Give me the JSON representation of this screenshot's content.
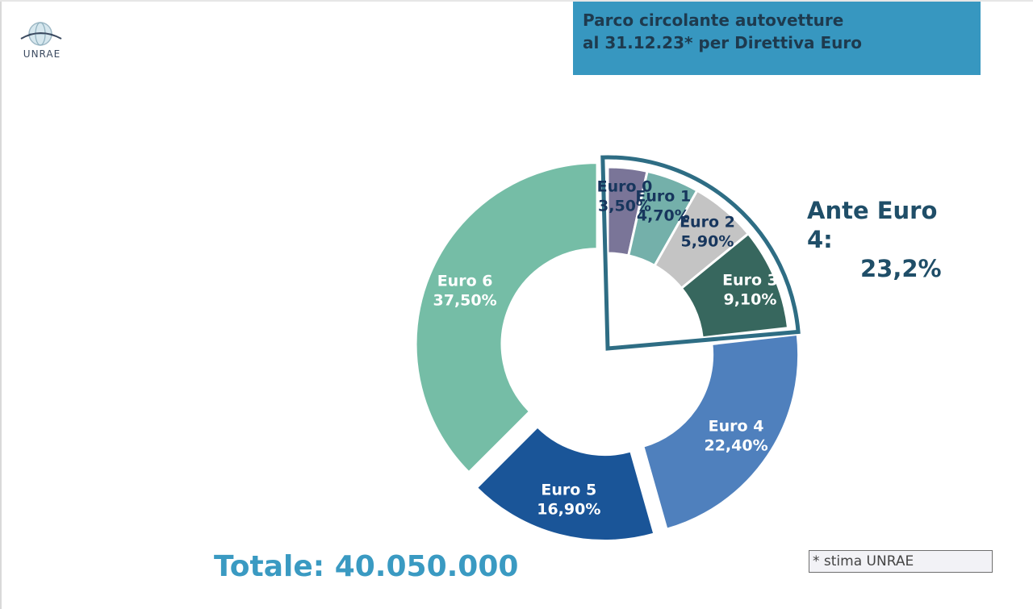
{
  "brand": {
    "logo_text": "UNRAE"
  },
  "header": {
    "title_line1": "Parco circolante autovetture",
    "title_line2": "al 31.12.23* per Direttiva Euro"
  },
  "callout": {
    "label": "Ante Euro 4:",
    "value": "23,2%"
  },
  "total": "Totale: 40.050.000",
  "footnote": "* stima UNRAE",
  "chart_data": {
    "type": "pie",
    "variant": "donut",
    "categories": [
      "Euro 0",
      "Euro 1",
      "Euro 2",
      "Euro 3",
      "Euro 4",
      "Euro 5",
      "Euro 6"
    ],
    "values": [
      3.5,
      4.7,
      5.9,
      9.1,
      22.4,
      16.9,
      37.5
    ],
    "value_labels": [
      "3,50%",
      "4,70%",
      "5,90%",
      "9,10%",
      "22,40%",
      "16,90%",
      "37,50%"
    ],
    "colors": [
      "#7a7598",
      "#74b0aa",
      "#c4c4c4",
      "#37675e",
      "#4f80bd",
      "#1a5598",
      "#75bda6"
    ],
    "label_colors": [
      "#17365d",
      "#17365d",
      "#17365d",
      "#ffffff",
      "#ffffff",
      "#ffffff",
      "#ffffff"
    ],
    "exploded": [
      "Euro 4",
      "Euro 5",
      "Euro 6"
    ],
    "highlight_group": [
      "Euro 0",
      "Euro 1",
      "Euro 2",
      "Euro 3"
    ],
    "highlight_color": "#2e6d84"
  }
}
